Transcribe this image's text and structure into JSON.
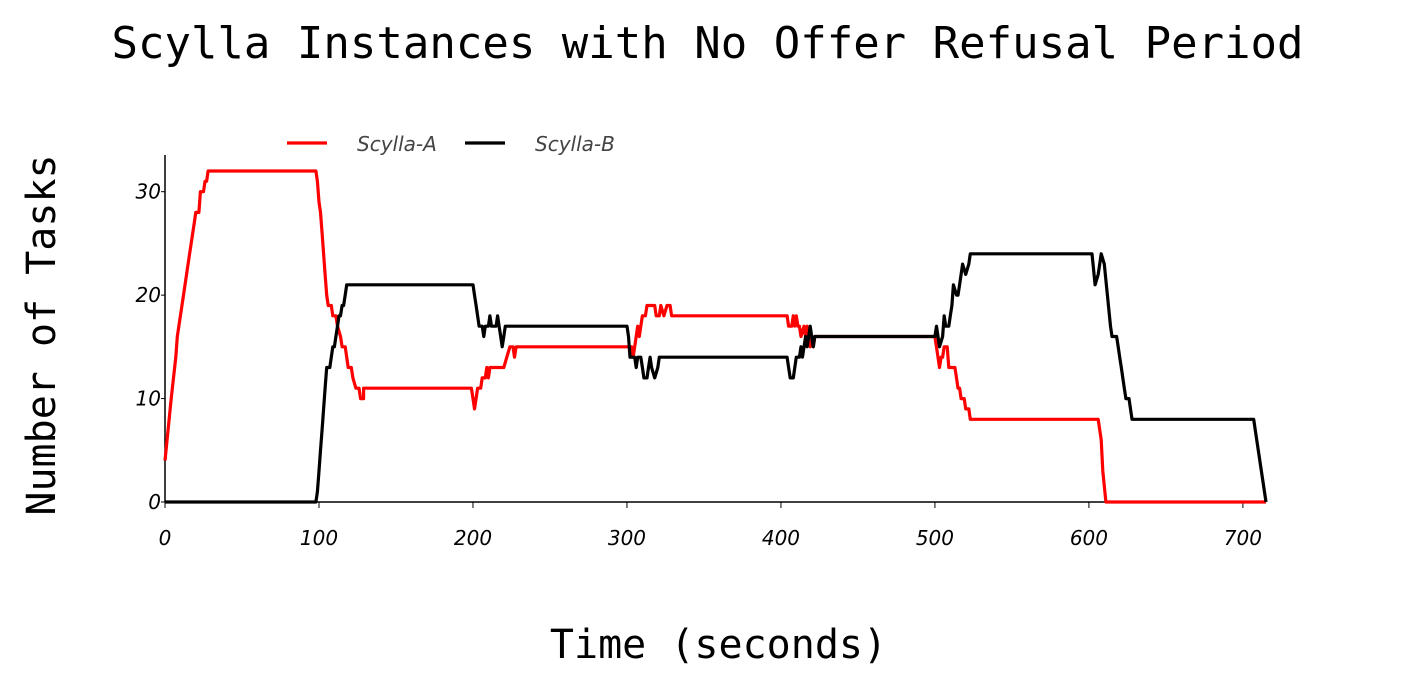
{
  "chart_data": {
    "type": "line",
    "title": "Scylla Instances with No Offer Refusal Period",
    "xlabel": "Time (seconds)",
    "ylabel": "Number of Tasks",
    "xlim": [
      0,
      715
    ],
    "ylim": [
      0,
      34
    ],
    "xticks": [
      0,
      100,
      200,
      300,
      400,
      500,
      600,
      700
    ],
    "yticks": [
      0,
      10,
      20,
      30
    ],
    "grid": false,
    "legend_position": "top-left",
    "series": [
      {
        "name": "Scylla-A",
        "color": "#ff0000",
        "points": [
          [
            0,
            4
          ],
          [
            2,
            7
          ],
          [
            4,
            10
          ],
          [
            7,
            14
          ],
          [
            8,
            16
          ],
          [
            12,
            20
          ],
          [
            16,
            24
          ],
          [
            19,
            27
          ],
          [
            20,
            28
          ],
          [
            22,
            28
          ],
          [
            23,
            30
          ],
          [
            25,
            30
          ],
          [
            26,
            31
          ],
          [
            27,
            31
          ],
          [
            28,
            32
          ],
          [
            98,
            32
          ],
          [
            99,
            31
          ],
          [
            100,
            29
          ],
          [
            101,
            28
          ],
          [
            102,
            26
          ],
          [
            103,
            24
          ],
          [
            104,
            22
          ],
          [
            105,
            20
          ],
          [
            106,
            19
          ],
          [
            108,
            19
          ],
          [
            109,
            18
          ],
          [
            111,
            18
          ],
          [
            112,
            17
          ],
          [
            114,
            16
          ],
          [
            115,
            15
          ],
          [
            117,
            15
          ],
          [
            118,
            14
          ],
          [
            119,
            13
          ],
          [
            121,
            13
          ],
          [
            122,
            12
          ],
          [
            124,
            11
          ],
          [
            126,
            11
          ],
          [
            127,
            10
          ],
          [
            129,
            10
          ],
          [
            129,
            11
          ],
          [
            199,
            11
          ],
          [
            200,
            10
          ],
          [
            201,
            9
          ],
          [
            202,
            10
          ],
          [
            203,
            11
          ],
          [
            205,
            11
          ],
          [
            206,
            12
          ],
          [
            208,
            12
          ],
          [
            209,
            13
          ],
          [
            210,
            12
          ],
          [
            211,
            13
          ],
          [
            220,
            13
          ],
          [
            222,
            14
          ],
          [
            224,
            15
          ],
          [
            226,
            15
          ],
          [
            227,
            14
          ],
          [
            228,
            15
          ],
          [
            303,
            15
          ],
          [
            304,
            14
          ],
          [
            305,
            15
          ],
          [
            306,
            16
          ],
          [
            307,
            17
          ],
          [
            308,
            16
          ],
          [
            309,
            17
          ],
          [
            310,
            18
          ],
          [
            312,
            18
          ],
          [
            313,
            19
          ],
          [
            318,
            19
          ],
          [
            319,
            18
          ],
          [
            321,
            18
          ],
          [
            322,
            19
          ],
          [
            324,
            18
          ],
          [
            326,
            19
          ],
          [
            328,
            19
          ],
          [
            329,
            18
          ],
          [
            404,
            18
          ],
          [
            405,
            17
          ],
          [
            407,
            17
          ],
          [
            408,
            18
          ],
          [
            409,
            17
          ],
          [
            410,
            18
          ],
          [
            411,
            17
          ],
          [
            412,
            17
          ],
          [
            413,
            16
          ],
          [
            415,
            17
          ],
          [
            416,
            16
          ],
          [
            417,
            17
          ],
          [
            418,
            16
          ],
          [
            419,
            15
          ],
          [
            420,
            16
          ],
          [
            421,
            15
          ],
          [
            422,
            16
          ],
          [
            500,
            16
          ],
          [
            502,
            14
          ],
          [
            503,
            13
          ],
          [
            504,
            14
          ],
          [
            505,
            14
          ],
          [
            506,
            15
          ],
          [
            508,
            15
          ],
          [
            509,
            13
          ],
          [
            513,
            13
          ],
          [
            514,
            12
          ],
          [
            515,
            11
          ],
          [
            516,
            11
          ],
          [
            517,
            10
          ],
          [
            519,
            10
          ],
          [
            520,
            9
          ],
          [
            522,
            9
          ],
          [
            523,
            8
          ],
          [
            606,
            8
          ],
          [
            607,
            7
          ],
          [
            608,
            6
          ],
          [
            609,
            3
          ],
          [
            611,
            0
          ],
          [
            715,
            0
          ]
        ]
      },
      {
        "name": "Scylla-B",
        "color": "#000000",
        "points": [
          [
            0,
            0
          ],
          [
            98,
            0
          ],
          [
            99,
            1
          ],
          [
            100,
            3
          ],
          [
            101,
            5
          ],
          [
            102,
            7
          ],
          [
            103,
            9
          ],
          [
            104,
            11
          ],
          [
            105,
            13
          ],
          [
            107,
            13
          ],
          [
            108,
            14
          ],
          [
            109,
            15
          ],
          [
            110,
            15
          ],
          [
            111,
            16
          ],
          [
            112,
            17
          ],
          [
            113,
            18
          ],
          [
            114,
            18
          ],
          [
            115,
            19
          ],
          [
            116,
            19
          ],
          [
            117,
            20
          ],
          [
            118,
            21
          ],
          [
            200,
            21
          ],
          [
            201,
            20
          ],
          [
            202,
            19
          ],
          [
            203,
            18
          ],
          [
            204,
            17
          ],
          [
            206,
            17
          ],
          [
            207,
            16
          ],
          [
            208,
            17
          ],
          [
            210,
            17
          ],
          [
            211,
            18
          ],
          [
            212,
            17
          ],
          [
            215,
            17
          ],
          [
            216,
            18
          ],
          [
            217,
            17
          ],
          [
            218,
            16
          ],
          [
            219,
            15
          ],
          [
            220,
            16
          ],
          [
            221,
            17
          ],
          [
            300,
            17
          ],
          [
            301,
            16
          ],
          [
            302,
            14
          ],
          [
            305,
            14
          ],
          [
            306,
            13
          ],
          [
            307,
            14
          ],
          [
            309,
            14
          ],
          [
            310,
            13
          ],
          [
            311,
            12
          ],
          [
            313,
            12
          ],
          [
            314,
            13
          ],
          [
            315,
            14
          ],
          [
            316,
            13
          ],
          [
            318,
            12
          ],
          [
            320,
            13
          ],
          [
            321,
            14
          ],
          [
            404,
            14
          ],
          [
            405,
            13
          ],
          [
            406,
            12
          ],
          [
            408,
            12
          ],
          [
            409,
            13
          ],
          [
            410,
            14
          ],
          [
            412,
            14
          ],
          [
            413,
            15
          ],
          [
            414,
            14
          ],
          [
            415,
            15
          ],
          [
            416,
            16
          ],
          [
            417,
            15
          ],
          [
            418,
            16
          ],
          [
            419,
            17
          ],
          [
            420,
            16
          ],
          [
            421,
            15
          ],
          [
            422,
            16
          ],
          [
            500,
            16
          ],
          [
            501,
            17
          ],
          [
            502,
            16
          ],
          [
            503,
            15
          ],
          [
            505,
            16
          ],
          [
            506,
            18
          ],
          [
            507,
            17
          ],
          [
            509,
            17
          ],
          [
            510,
            18
          ],
          [
            511,
            19
          ],
          [
            512,
            21
          ],
          [
            514,
            20
          ],
          [
            515,
            20
          ],
          [
            516,
            21
          ],
          [
            518,
            23
          ],
          [
            520,
            22
          ],
          [
            522,
            23
          ],
          [
            523,
            24
          ],
          [
            602,
            24
          ],
          [
            604,
            21
          ],
          [
            606,
            22
          ],
          [
            607,
            23
          ],
          [
            608,
            24
          ],
          [
            610,
            23
          ],
          [
            612,
            20
          ],
          [
            614,
            17
          ],
          [
            615,
            16
          ],
          [
            618,
            16
          ],
          [
            619,
            15
          ],
          [
            620,
            14
          ],
          [
            621,
            13
          ],
          [
            622,
            12
          ],
          [
            623,
            11
          ],
          [
            624,
            10
          ],
          [
            626,
            10
          ],
          [
            627,
            9
          ],
          [
            628,
            8
          ],
          [
            707,
            8
          ],
          [
            708,
            7
          ],
          [
            715,
            0
          ]
        ]
      }
    ]
  }
}
